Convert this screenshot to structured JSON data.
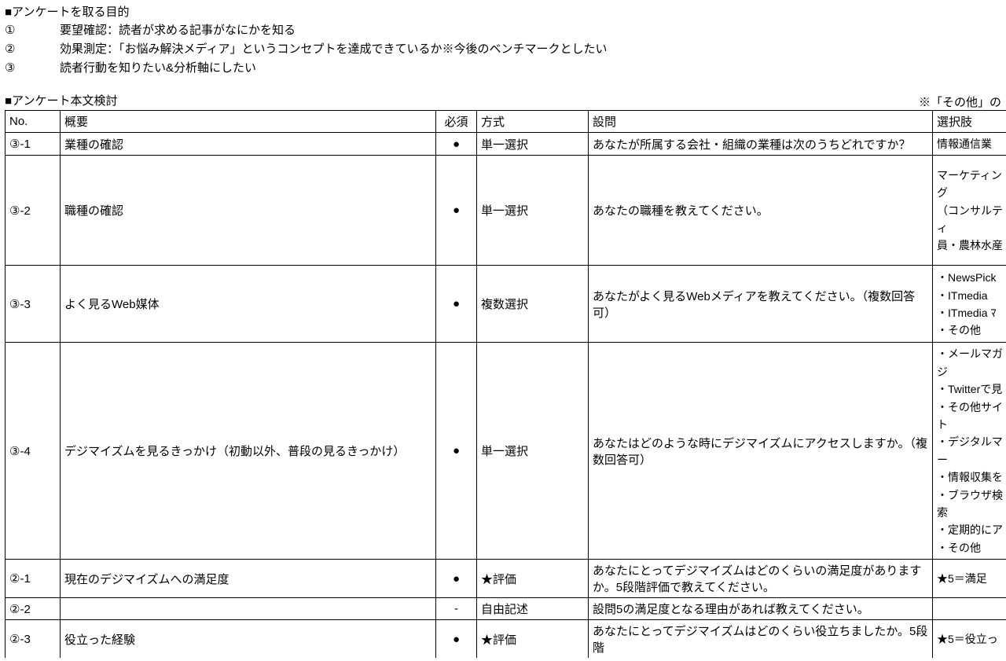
{
  "purpose": {
    "title": "■アンケートを取る目的",
    "items": [
      {
        "num": "①",
        "text": "要望確認：読者が求める記事がなにかを知る"
      },
      {
        "num": "②",
        "text": "効果測定：「お悩み解決メディア」というコンセプトを達成できているか※今後のベンチマークとしたい"
      },
      {
        "num": "③",
        "text": "読者行動を知りたい&分析軸にしたい"
      }
    ]
  },
  "body": {
    "title": "■アンケート本文検討",
    "note": "※「その他」の",
    "headers": {
      "no": "No.",
      "summary": "概要",
      "required": "必須",
      "method": "方式",
      "question": "設問",
      "options": "選択肢"
    },
    "rows": [
      {
        "no": "③-1",
        "summary": "業種の確認",
        "required": "●",
        "method": "単一選択",
        "question": "あなたが所属する会社・組織の業種は次のうちどれですか？",
        "options": "情報通信業"
      },
      {
        "no": "③-2",
        "summary": "職種の確認",
        "required": "●",
        "method": "単一選択",
        "question": "あなたの職種を教えてください。",
        "options": "マーケティング\n（コンサルティ\n員・農林水産"
      },
      {
        "no": "③-3",
        "summary": "よく見るWeb媒体",
        "required": "●",
        "method": "複数選択",
        "question": "あなたがよく見るWebメディアを教えてください。（複数回答可）",
        "options": "・NewsPick\n・ITmedia\n・ITmedia ﾏ\n・その他"
      },
      {
        "no": "③-4",
        "summary": "デジマイズムを見るきっかけ（初動以外、普段の見るきっかけ）",
        "required": "●",
        "method": "単一選択",
        "question": "あなたはどのような時にデジマイズムにアクセスしますか。（複数回答可）",
        "options": "・メールマガジ\n・Twitterで見\n・その他サイト\n・デジタルマー\n・情報収集を\n・ブラウザ検索\n・定期的にア\n・その他"
      },
      {
        "no": "②-1",
        "summary": "現在のデジマイズムへの満足度",
        "required": "●",
        "method": "★評価",
        "question": "あなたにとってデジマイズムはどのくらいの満足度がありますか。5段階評価で教えてください。",
        "options": "★5＝満足"
      },
      {
        "no": "②-2",
        "summary": "",
        "required": "-",
        "method": "自由記述",
        "question": "設問5の満足度となる理由があれば教えてください。",
        "options": ""
      },
      {
        "no": "②-3",
        "summary": "役立った経験",
        "required": "●",
        "method": "★評価",
        "question": "あなたにとってデジマイズムはどのくらい役立ちましたか。5段階",
        "options": "★5＝役立っ"
      }
    ]
  }
}
